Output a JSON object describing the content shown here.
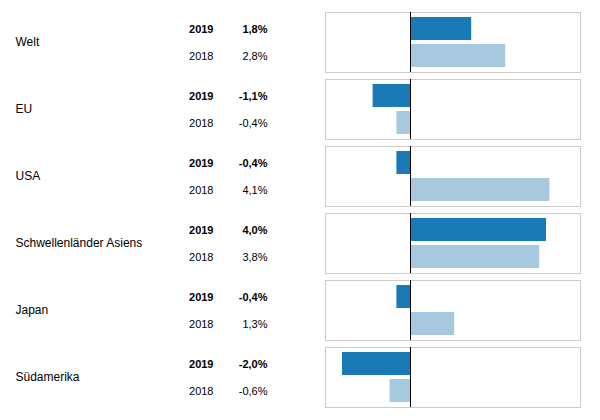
{
  "chart_data": {
    "type": "bar",
    "orientation": "horizontal",
    "categories": [
      "Welt",
      "EU",
      "USA",
      "Schwellenländer Asiens",
      "Japan",
      "Südamerika"
    ],
    "series": [
      {
        "name": "2019",
        "color": "#1a7ab5",
        "values": [
          1.8,
          -1.1,
          -0.4,
          4.0,
          -0.4,
          -2.0
        ],
        "value_labels": [
          "1,8%",
          "-1,1%",
          "-0,4%",
          "4,0%",
          "-0,4%",
          "-2,0%"
        ]
      },
      {
        "name": "2018",
        "color": "#a8c8e0",
        "values": [
          2.8,
          -0.4,
          4.1,
          3.8,
          1.3,
          -0.6
        ],
        "value_labels": [
          "2,8%",
          "-0,4%",
          "4,1%",
          "3,8%",
          "1,3%",
          "-0,6%"
        ]
      }
    ],
    "xlim": [
      -2.5,
      5.0
    ],
    "data_labels": true,
    "tick_labels": false
  }
}
